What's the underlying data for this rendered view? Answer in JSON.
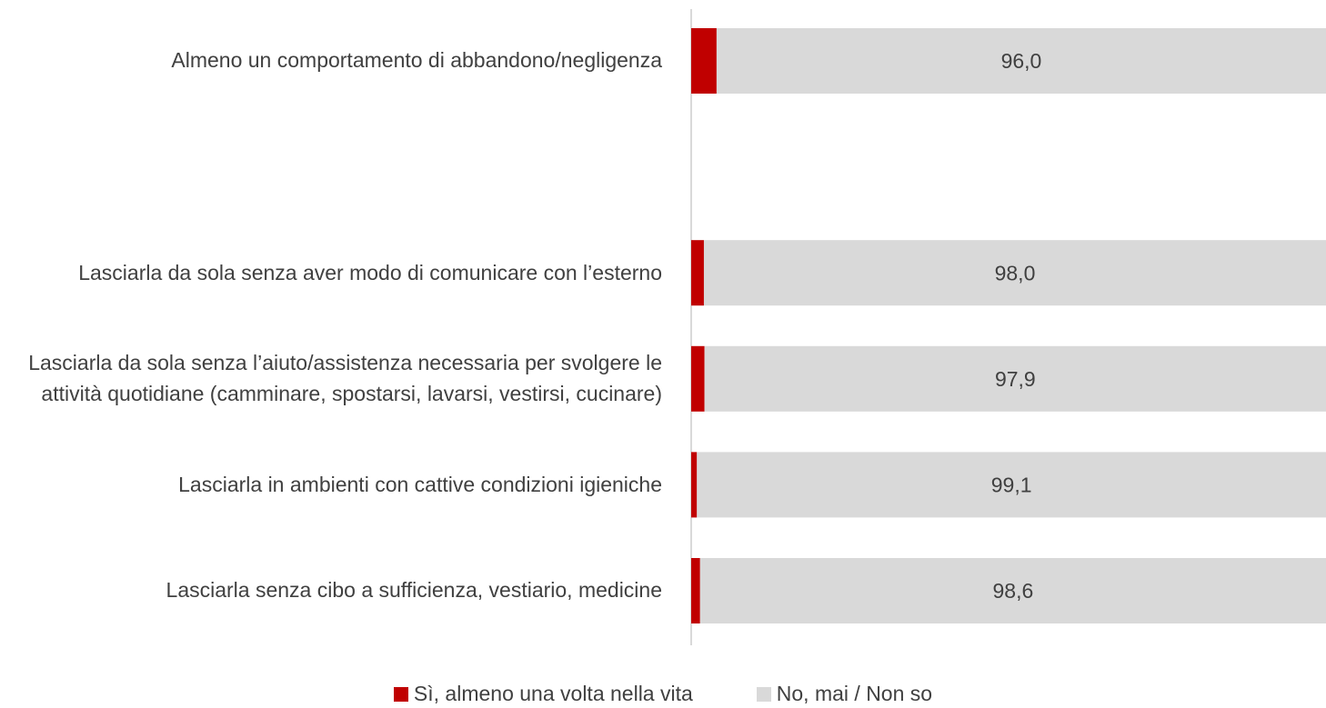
{
  "chart_data": {
    "type": "stacked-bar-horizontal",
    "categories": [
      "Almeno un comportamento di abbandono/negligenza",
      null,
      "Lasciarla da sola senza aver modo di comunicare con l’esterno",
      "Lasciarla da sola senza l’aiuto/assistenza necessaria per svolgere le attività quotidiane (camminare, spostarsi, lavarsi, vestirsi, cucinare)",
      "Lasciarla in ambienti con cattive condizioni igieniche",
      "Lasciarla senza cibo a sufficienza, vestiario, medicine"
    ],
    "series": [
      {
        "name": "Sì, almeno una volta nella vita",
        "color": "#c00000",
        "values": [
          4.0,
          null,
          2.0,
          2.1,
          0.9,
          1.4
        ],
        "value_labels": [
          "4,0",
          null,
          "2,0",
          "2,1",
          "0,9",
          "1,4"
        ]
      },
      {
        "name": "No, mai / Non so",
        "color": "#d9d9d9",
        "values": [
          96.0,
          null,
          98.0,
          97.9,
          99.1,
          98.6
        ],
        "value_labels": [
          "96,0",
          null,
          "98,0",
          "97,9",
          "99,1",
          "98,6"
        ]
      }
    ],
    "xlim": [
      0,
      100
    ],
    "legend": "bottom"
  }
}
